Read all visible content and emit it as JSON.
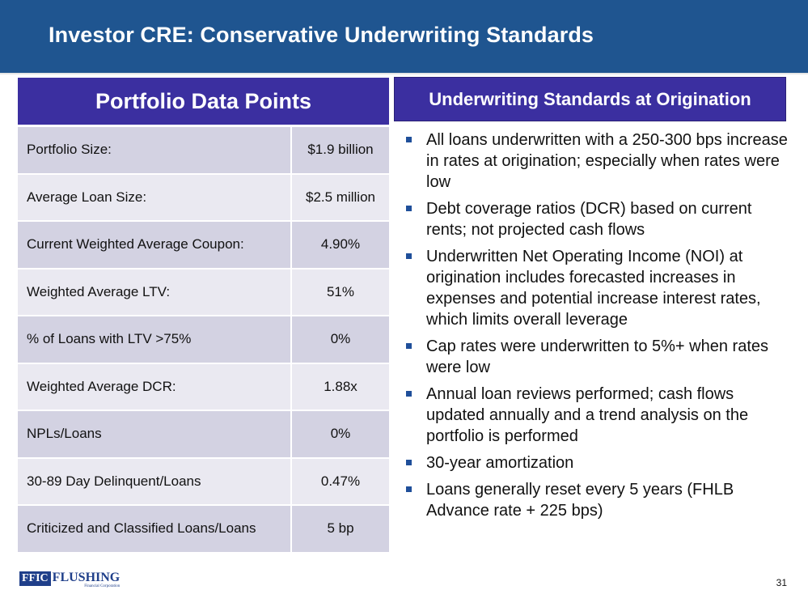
{
  "slide": {
    "title": "Investor CRE: Conservative Underwriting Standards",
    "page_number": "31"
  },
  "portfolio": {
    "heading": "Portfolio Data Points",
    "rows": [
      {
        "label": "Portfolio Size:",
        "value": "$1.9 billion"
      },
      {
        "label": "Average Loan Size:",
        "value": "$2.5 million"
      },
      {
        "label": "Current Weighted Average Coupon:",
        "value": "4.90%"
      },
      {
        "label": "Weighted Average LTV:",
        "value": "51%"
      },
      {
        "label": "% of Loans with LTV >75%",
        "value": "0%"
      },
      {
        "label": "Weighted Average DCR:",
        "value": "1.88x"
      },
      {
        "label": "NPLs/Loans",
        "value": "0%"
      },
      {
        "label": "30-89 Day Delinquent/Loans",
        "value": "0.47%"
      },
      {
        "label": "Criticized and Classified Loans/Loans",
        "value": "5 bp"
      }
    ]
  },
  "standards": {
    "heading": "Underwriting Standards at Origination",
    "items": [
      "All loans underwritten with a 250-300 bps increase in rates at origination; especially when rates were low",
      "Debt coverage ratios (DCR) based on current rents; not projected cash flows",
      "Underwritten Net Operating Income (NOI) at origination includes forecasted increases in expenses and potential increase interest rates, which limits overall leverage",
      "Cap rates were underwritten to 5%+ when rates were low",
      "Annual loan reviews performed; cash flows updated annually and a trend analysis on the portfolio is performed",
      "30-year amortization",
      "Loans generally reset every 5 years (FHLB Advance rate + 225 bps)"
    ]
  },
  "logo": {
    "mark": "FFIC",
    "word": "FLUSHING",
    "sub": "Financial Corporation"
  },
  "colors": {
    "header_bg": "#1f5590",
    "panel_header_bg": "#3b2fa0",
    "row_dark": "#d3d2e2",
    "row_light": "#eae9f1",
    "bullet": "#1f4f9a"
  }
}
